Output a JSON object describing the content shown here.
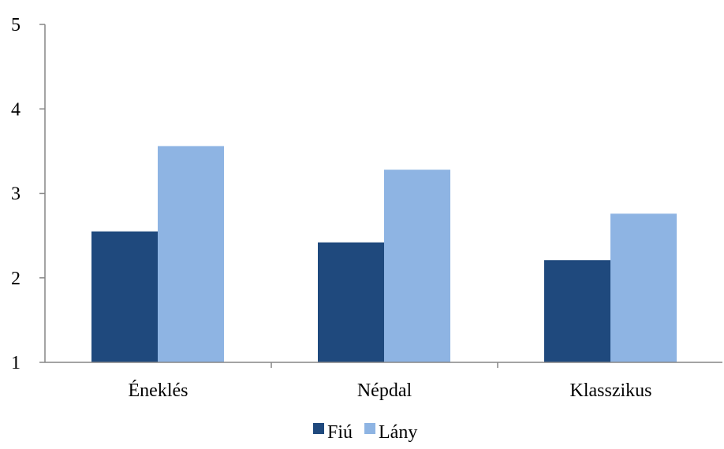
{
  "chart_data": {
    "type": "bar",
    "title": "",
    "xlabel": "",
    "ylabel": "",
    "categories": [
      "Éneklés",
      "Népdal",
      "Klasszikus"
    ],
    "series": [
      {
        "name": "Fiú",
        "values": [
          2.55,
          2.42,
          2.21
        ],
        "color": "#1f497d"
      },
      {
        "name": "Lány",
        "values": [
          3.56,
          3.28,
          2.76
        ],
        "color": "#8eb4e3"
      }
    ],
    "ylim": [
      1,
      5
    ],
    "yticks": [
      "1",
      "2",
      "3",
      "4",
      "5"
    ],
    "grid": false,
    "legend_position": "bottom",
    "axis_color": "#868686"
  }
}
